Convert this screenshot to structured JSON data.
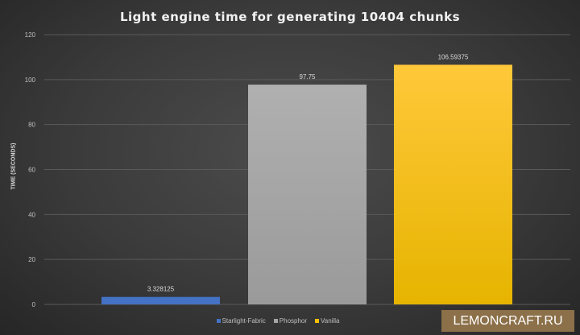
{
  "chart_data": {
    "type": "bar",
    "title": "Light engine time for generating 10404 chunks",
    "ylabel": "TIME (SECONDS)",
    "xlabel": "",
    "ylim": [
      0,
      120
    ],
    "yticks": [
      0,
      20,
      40,
      60,
      80,
      100,
      120
    ],
    "grid": true,
    "legend_position": "bottom",
    "series": [
      {
        "name": "Starlight-Fabric",
        "value": 3.328125,
        "label": "3.328125",
        "color": "#4472c4"
      },
      {
        "name": "Phosphor",
        "value": 97.75,
        "label": "97.75",
        "color": "#a5a5a5"
      },
      {
        "name": "Vanilla",
        "value": 106.59375,
        "label": "106.59375",
        "color": "#ffc000"
      }
    ]
  },
  "watermark": "LEMONCRAFT.RU"
}
